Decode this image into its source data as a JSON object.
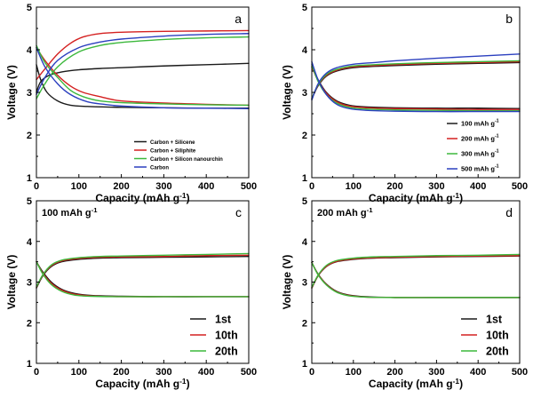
{
  "chart_data": [
    {
      "panel": "a",
      "type": "line",
      "title": "",
      "xlabel": "Capacity (mAh g-1)",
      "ylabel": "Voltage (V)",
      "xlim": [
        0,
        500
      ],
      "ylim": [
        1,
        5
      ],
      "xticks": [
        0,
        100,
        200,
        300,
        400,
        500
      ],
      "yticks": [
        1,
        2,
        3,
        4,
        5
      ],
      "legend_position": "bottom-right",
      "series": [
        {
          "name": "Carbon + Silicene",
          "color": "#1a1a1a",
          "kind": "charge",
          "x": [
            0,
            10,
            30,
            60,
            100,
            150,
            200,
            300,
            400,
            500
          ],
          "y": [
            3.0,
            3.25,
            3.4,
            3.48,
            3.53,
            3.56,
            3.58,
            3.62,
            3.65,
            3.68
          ]
        },
        {
          "name": "Carbon + Silicene",
          "color": "#1a1a1a",
          "kind": "discharge",
          "x": [
            0,
            10,
            25,
            50,
            80,
            120,
            200,
            300,
            400,
            500
          ],
          "y": [
            3.65,
            3.3,
            3.0,
            2.8,
            2.7,
            2.67,
            2.65,
            2.64,
            2.63,
            2.63
          ]
        },
        {
          "name": "Carbon + Siliphite",
          "color": "#d42020",
          "kind": "charge",
          "x": [
            0,
            20,
            50,
            80,
            110,
            150,
            200,
            300,
            400,
            500
          ],
          "y": [
            3.3,
            3.55,
            3.9,
            4.15,
            4.3,
            4.38,
            4.41,
            4.43,
            4.44,
            4.45
          ]
        },
        {
          "name": "Carbon + Siliphite",
          "color": "#d42020",
          "kind": "discharge",
          "x": [
            0,
            20,
            50,
            80,
            110,
            150,
            200,
            300,
            400,
            500
          ],
          "y": [
            4.05,
            3.75,
            3.4,
            3.15,
            3.0,
            2.9,
            2.8,
            2.75,
            2.72,
            2.7
          ]
        },
        {
          "name": "Carbon + Silicon nanourchin",
          "color": "#3cb83c",
          "kind": "charge",
          "x": [
            0,
            20,
            50,
            100,
            150,
            200,
            300,
            400,
            500
          ],
          "y": [
            2.85,
            3.2,
            3.6,
            3.95,
            4.1,
            4.17,
            4.24,
            4.28,
            4.3
          ]
        },
        {
          "name": "Carbon + Silicon nanourchin",
          "color": "#3cb83c",
          "kind": "discharge",
          "x": [
            0,
            20,
            50,
            80,
            110,
            150,
            200,
            300,
            400,
            500
          ],
          "y": [
            4.1,
            3.7,
            3.35,
            3.05,
            2.9,
            2.8,
            2.76,
            2.73,
            2.71,
            2.7
          ]
        },
        {
          "name": "Carbon",
          "color": "#2b3fbf",
          "kind": "charge",
          "x": [
            0,
            20,
            50,
            100,
            150,
            200,
            300,
            400,
            500
          ],
          "y": [
            2.95,
            3.35,
            3.75,
            4.05,
            4.18,
            4.25,
            4.32,
            4.36,
            4.38
          ]
        },
        {
          "name": "Carbon",
          "color": "#2b3fbf",
          "kind": "discharge",
          "x": [
            0,
            20,
            50,
            80,
            120,
            160,
            200,
            300,
            400,
            500
          ],
          "y": [
            4.05,
            3.6,
            3.2,
            2.95,
            2.78,
            2.72,
            2.68,
            2.64,
            2.63,
            2.62
          ]
        }
      ]
    },
    {
      "panel": "b",
      "type": "line",
      "title": "",
      "xlabel": "Capacity (mAh g-1)",
      "ylabel": "Voltage (V)",
      "xlim": [
        0,
        500
      ],
      "ylim": [
        1,
        5
      ],
      "xticks": [
        0,
        100,
        200,
        300,
        400,
        500
      ],
      "yticks": [
        1,
        2,
        3,
        4,
        5
      ],
      "legend_position": "bottom-right",
      "series": [
        {
          "name": "100 mAh g-1",
          "color": "#1a1a1a",
          "kind": "charge",
          "x": [
            0,
            15,
            35,
            60,
            100,
            150,
            200,
            300,
            400,
            500
          ],
          "y": [
            2.85,
            3.15,
            3.38,
            3.5,
            3.58,
            3.61,
            3.63,
            3.66,
            3.68,
            3.7
          ]
        },
        {
          "name": "100 mAh g-1",
          "color": "#1a1a1a",
          "kind": "discharge",
          "x": [
            0,
            15,
            35,
            60,
            90,
            130,
            200,
            300,
            400,
            500
          ],
          "y": [
            3.6,
            3.3,
            3.0,
            2.8,
            2.7,
            2.66,
            2.64,
            2.63,
            2.63,
            2.62
          ]
        },
        {
          "name": "200 mAh g-1",
          "color": "#d42020",
          "kind": "charge",
          "x": [
            0,
            15,
            35,
            60,
            100,
            150,
            200,
            300,
            400,
            500
          ],
          "y": [
            2.85,
            3.17,
            3.4,
            3.52,
            3.6,
            3.63,
            3.65,
            3.68,
            3.7,
            3.72
          ]
        },
        {
          "name": "200 mAh g-1",
          "color": "#d42020",
          "kind": "discharge",
          "x": [
            0,
            15,
            35,
            60,
            90,
            130,
            200,
            300,
            400,
            500
          ],
          "y": [
            3.6,
            3.28,
            2.98,
            2.78,
            2.68,
            2.64,
            2.62,
            2.61,
            2.6,
            2.6
          ]
        },
        {
          "name": "300 mAh g-1",
          "color": "#3cb83c",
          "kind": "charge",
          "x": [
            0,
            15,
            35,
            60,
            100,
            150,
            200,
            300,
            400,
            500
          ],
          "y": [
            2.85,
            3.18,
            3.42,
            3.54,
            3.62,
            3.65,
            3.67,
            3.7,
            3.72,
            3.74
          ]
        },
        {
          "name": "300 mAh g-1",
          "color": "#3cb83c",
          "kind": "discharge",
          "x": [
            0,
            15,
            35,
            60,
            90,
            130,
            200,
            300,
            400,
            500
          ],
          "y": [
            3.65,
            3.26,
            2.95,
            2.75,
            2.65,
            2.61,
            2.59,
            2.58,
            2.57,
            2.57
          ]
        },
        {
          "name": "500 mAh g-1",
          "color": "#2b3fbf",
          "kind": "charge",
          "x": [
            0,
            15,
            35,
            60,
            100,
            150,
            200,
            300,
            400,
            500
          ],
          "y": [
            2.82,
            3.2,
            3.45,
            3.58,
            3.66,
            3.7,
            3.74,
            3.8,
            3.85,
            3.9
          ]
        },
        {
          "name": "500 mAh g-1",
          "color": "#2b3fbf",
          "kind": "discharge",
          "x": [
            0,
            15,
            35,
            60,
            90,
            130,
            200,
            300,
            400,
            500
          ],
          "y": [
            3.72,
            3.3,
            2.95,
            2.72,
            2.62,
            2.58,
            2.56,
            2.55,
            2.55,
            2.55
          ]
        }
      ]
    },
    {
      "panel": "c",
      "type": "line",
      "title": "100 mAh g-1",
      "xlabel": "Capacity (mAh g-1)",
      "ylabel": "Voltage (V)",
      "xlim": [
        0,
        500
      ],
      "ylim": [
        1,
        5
      ],
      "xticks": [
        0,
        100,
        200,
        300,
        400,
        500
      ],
      "yticks": [
        1,
        2,
        3,
        4,
        5
      ],
      "legend_position": "bottom-right",
      "series": [
        {
          "name": "1st",
          "color": "#1a1a1a",
          "kind": "charge",
          "x": [
            0,
            15,
            35,
            60,
            100,
            150,
            200,
            300,
            400,
            500
          ],
          "y": [
            2.85,
            3.15,
            3.38,
            3.5,
            3.56,
            3.59,
            3.6,
            3.61,
            3.62,
            3.63
          ]
        },
        {
          "name": "1st",
          "color": "#1a1a1a",
          "kind": "discharge",
          "x": [
            0,
            15,
            35,
            60,
            90,
            130,
            200,
            300,
            400,
            500
          ],
          "y": [
            3.5,
            3.25,
            3.0,
            2.82,
            2.72,
            2.67,
            2.65,
            2.64,
            2.64,
            2.64
          ]
        },
        {
          "name": "10th",
          "color": "#d42020",
          "kind": "charge",
          "x": [
            0,
            15,
            35,
            60,
            100,
            150,
            200,
            300,
            400,
            500
          ],
          "y": [
            2.87,
            3.17,
            3.4,
            3.52,
            3.58,
            3.61,
            3.62,
            3.63,
            3.65,
            3.66
          ]
        },
        {
          "name": "10th",
          "color": "#d42020",
          "kind": "discharge",
          "x": [
            0,
            15,
            35,
            60,
            90,
            130,
            200,
            300,
            400,
            500
          ],
          "y": [
            3.5,
            3.22,
            2.97,
            2.8,
            2.7,
            2.66,
            2.64,
            2.64,
            2.64,
            2.64
          ]
        },
        {
          "name": "20th",
          "color": "#3cb83c",
          "kind": "charge",
          "x": [
            0,
            15,
            35,
            60,
            100,
            150,
            200,
            300,
            400,
            500
          ],
          "y": [
            2.88,
            3.18,
            3.42,
            3.54,
            3.6,
            3.63,
            3.64,
            3.66,
            3.68,
            3.7
          ]
        },
        {
          "name": "20th",
          "color": "#3cb83c",
          "kind": "discharge",
          "x": [
            0,
            15,
            35,
            60,
            90,
            130,
            200,
            300,
            400,
            500
          ],
          "y": [
            3.5,
            3.2,
            2.94,
            2.77,
            2.68,
            2.65,
            2.64,
            2.64,
            2.64,
            2.64
          ]
        }
      ]
    },
    {
      "panel": "d",
      "type": "line",
      "title": "200 mAh g-1",
      "xlabel": "Capacity (mAh g-1)",
      "ylabel": "Voltage (V)",
      "xlim": [
        0,
        500
      ],
      "ylim": [
        1,
        5
      ],
      "xticks": [
        0,
        100,
        200,
        300,
        400,
        500
      ],
      "yticks": [
        1,
        2,
        3,
        4,
        5
      ],
      "legend_position": "bottom-right",
      "series": [
        {
          "name": "1st",
          "color": "#1a1a1a",
          "kind": "charge",
          "x": [
            0,
            15,
            35,
            60,
            100,
            150,
            200,
            300,
            400,
            500
          ],
          "y": [
            2.85,
            3.15,
            3.38,
            3.5,
            3.56,
            3.59,
            3.6,
            3.62,
            3.63,
            3.64
          ]
        },
        {
          "name": "1st",
          "color": "#1a1a1a",
          "kind": "discharge",
          "x": [
            0,
            15,
            35,
            60,
            90,
            130,
            200,
            300,
            400,
            500
          ],
          "y": [
            3.48,
            3.2,
            2.95,
            2.77,
            2.68,
            2.64,
            2.62,
            2.62,
            2.62,
            2.62
          ]
        },
        {
          "name": "10th",
          "color": "#d42020",
          "kind": "charge",
          "x": [
            0,
            15,
            35,
            60,
            100,
            150,
            200,
            300,
            400,
            500
          ],
          "y": [
            2.86,
            3.16,
            3.39,
            3.51,
            3.57,
            3.6,
            3.61,
            3.63,
            3.64,
            3.65
          ]
        },
        {
          "name": "10th",
          "color": "#d42020",
          "kind": "discharge",
          "x": [
            0,
            15,
            35,
            60,
            90,
            130,
            200,
            300,
            400,
            500
          ],
          "y": [
            3.48,
            3.19,
            2.94,
            2.76,
            2.67,
            2.63,
            2.62,
            2.62,
            2.62,
            2.62
          ]
        },
        {
          "name": "20th",
          "color": "#3cb83c",
          "kind": "charge",
          "x": [
            0,
            15,
            35,
            60,
            100,
            150,
            200,
            300,
            400,
            500
          ],
          "y": [
            2.87,
            3.17,
            3.41,
            3.53,
            3.59,
            3.62,
            3.63,
            3.65,
            3.66,
            3.68
          ]
        },
        {
          "name": "20th",
          "color": "#3cb83c",
          "kind": "discharge",
          "x": [
            0,
            15,
            35,
            60,
            90,
            130,
            200,
            300,
            400,
            500
          ],
          "y": [
            3.48,
            3.18,
            2.93,
            2.75,
            2.66,
            2.63,
            2.62,
            2.62,
            2.62,
            2.62
          ]
        }
      ]
    }
  ]
}
